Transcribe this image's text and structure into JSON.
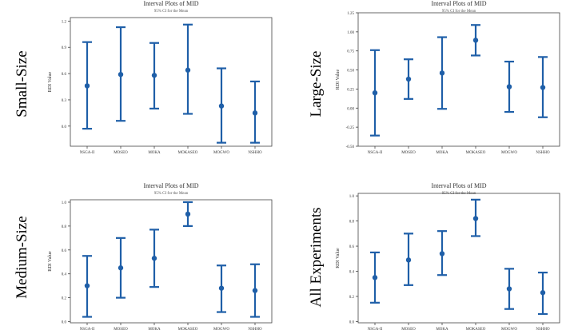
{
  "colors": {
    "series": "#1f5fa8",
    "axis": "#444444",
    "text": "#333333"
  },
  "panel_labels": [
    "Small-Size",
    "Large-Size",
    "Medium-Size",
    "All Experiments"
  ],
  "chart_data": [
    {
      "type": "errorbar",
      "panel_label": "Small-Size",
      "title": "Interval Plots of MID",
      "subtitle": "95% CI for the Mean",
      "ylabel": "RDI Value",
      "categories": [
        "NSGA-II",
        "MOSEO",
        "MOKA",
        "MOKASEO",
        "MOGWO",
        "NSHHO"
      ],
      "means": [
        0.46,
        0.59,
        0.58,
        0.64,
        0.23,
        0.15
      ],
      "lower": [
        -0.03,
        0.06,
        0.2,
        0.14,
        -0.19,
        -0.19
      ],
      "upper": [
        0.96,
        1.13,
        0.95,
        1.16,
        0.66,
        0.51
      ],
      "yticks": [
        0.0,
        0.3,
        0.6,
        0.9,
        1.2
      ],
      "ytick_labels": [
        "0.0",
        "0.3",
        "0.6",
        "0.9",
        "1.2"
      ],
      "ylim": [
        -0.23,
        1.24
      ]
    },
    {
      "type": "errorbar",
      "panel_label": "Large-Size",
      "title": "Interval Plots of MID",
      "subtitle": "95% CI for the Mean",
      "ylabel": "RDI Value",
      "categories": [
        "NSGA-II",
        "MOSEO",
        "MOKA",
        "MOKASEO",
        "MOGWO",
        "NSHHO"
      ],
      "means": [
        0.2,
        0.38,
        0.46,
        0.89,
        0.28,
        0.27
      ],
      "lower": [
        -0.36,
        0.12,
        -0.01,
        0.69,
        -0.05,
        -0.12
      ],
      "upper": [
        0.76,
        0.64,
        0.93,
        1.09,
        0.61,
        0.67
      ],
      "yticks": [
        -0.5,
        -0.25,
        0.0,
        0.25,
        0.5,
        0.75,
        1.0,
        1.25
      ],
      "ytick_labels": [
        "-0.50",
        "-0.25",
        "0.00",
        "0.25",
        "0.50",
        "0.75",
        "1.00",
        "1.25"
      ],
      "ylim": [
        -0.5,
        1.25
      ]
    },
    {
      "type": "errorbar",
      "panel_label": "Medium-Size",
      "title": "Interval Plots of MID",
      "subtitle": "95% CI for the Mean",
      "ylabel": "RDI Value",
      "categories": [
        "NSGA-II",
        "MOSEO",
        "MOKA",
        "MOKASEO",
        "MOGWO",
        "NSHHO"
      ],
      "means": [
        0.3,
        0.45,
        0.53,
        0.9,
        0.28,
        0.26
      ],
      "lower": [
        0.04,
        0.2,
        0.29,
        0.8,
        0.08,
        0.04
      ],
      "upper": [
        0.55,
        0.7,
        0.77,
        1.0,
        0.47,
        0.48
      ],
      "yticks": [
        0.0,
        0.2,
        0.4,
        0.6,
        0.8,
        1.0
      ],
      "ytick_labels": [
        "0.0",
        "0.2",
        "0.4",
        "0.6",
        "0.8",
        "1.0"
      ],
      "ylim": [
        -0.01,
        1.02
      ]
    },
    {
      "type": "errorbar",
      "panel_label": "All Experiments",
      "title": "Interval Plots of MID",
      "subtitle": "95% CI for the Mean",
      "ylabel": "RDI Value",
      "categories": [
        "NSGA-II",
        "MOSEO",
        "MOKA",
        "MOKASEO",
        "MOGWO",
        "NSHHO"
      ],
      "means": [
        0.35,
        0.49,
        0.54,
        0.82,
        0.26,
        0.23
      ],
      "lower": [
        0.15,
        0.29,
        0.37,
        0.68,
        0.1,
        0.06
      ],
      "upper": [
        0.55,
        0.7,
        0.72,
        0.97,
        0.42,
        0.39
      ],
      "yticks": [
        0.0,
        0.2,
        0.4,
        0.6,
        0.8,
        1.0
      ],
      "ytick_labels": [
        "0.0",
        "0.2",
        "0.4",
        "0.6",
        "0.8",
        "1.0"
      ],
      "ylim": [
        -0.01,
        1.02
      ]
    }
  ]
}
